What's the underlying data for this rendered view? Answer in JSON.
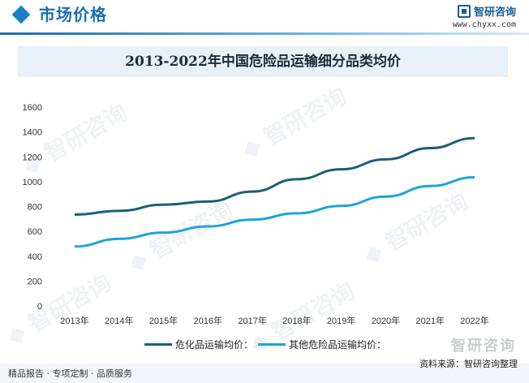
{
  "header": {
    "section_title": "市场价格",
    "brand_name": "智研咨询",
    "brand_url": "www.chyxx.com"
  },
  "footer": {
    "left": "精品报告 · 专项定制 · 品质服务",
    "source": "资料来源：智研咨询整理",
    "brand_watermark": "智研咨询"
  },
  "colors": {
    "series1": "#1a5f7a",
    "series2": "#1ea3dc",
    "title_bg": "#e8f1f7"
  },
  "chart_data": {
    "type": "line",
    "title": "2013-2022年中国危险品运输细分品类均价",
    "x": [
      "2013年",
      "2014年",
      "2015年",
      "2016年",
      "2017年",
      "2018年",
      "2019年",
      "2020年",
      "2021年",
      "2022年"
    ],
    "ylim": [
      0,
      1600
    ],
    "yticks": [
      0,
      200,
      400,
      600,
      800,
      1000,
      1200,
      1400,
      1600
    ],
    "grid": false,
    "legend_position": "bottom",
    "series": [
      {
        "name": "危化品运输均价：",
        "values": [
          735,
          765,
          815,
          840,
          920,
          1020,
          1100,
          1180,
          1270,
          1350
        ]
      },
      {
        "name": "其他危险品运输均价：",
        "values": [
          478,
          540,
          590,
          640,
          695,
          745,
          805,
          880,
          965,
          1035
        ]
      }
    ]
  }
}
